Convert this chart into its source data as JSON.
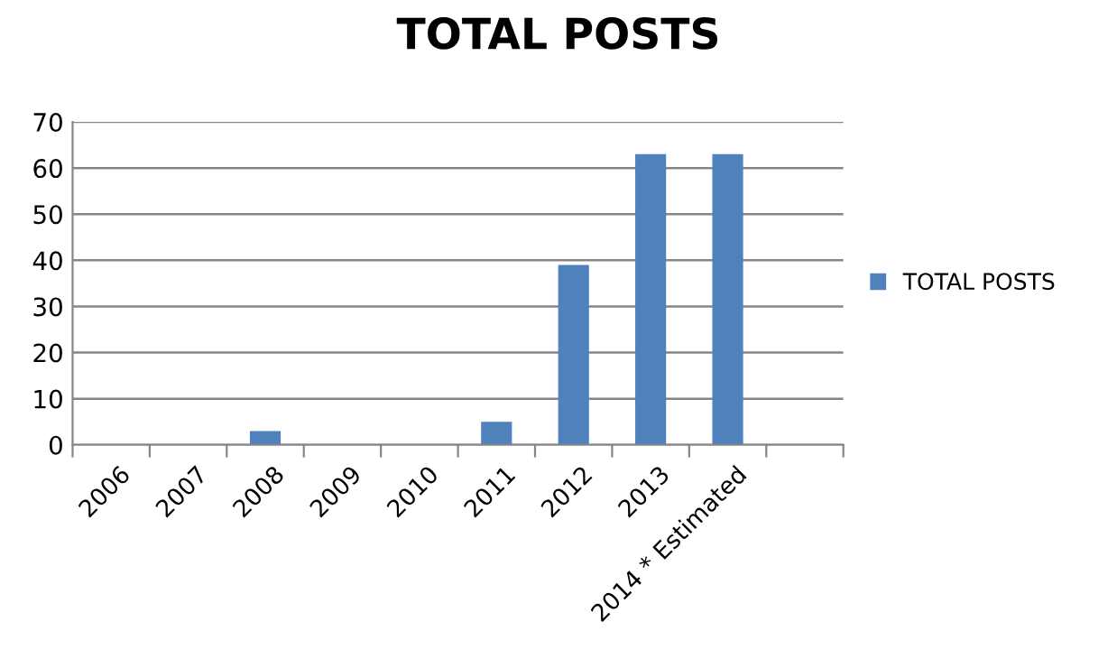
{
  "chart_data": {
    "type": "bar",
    "title": "TOTAL POSTS",
    "categories": [
      "2006",
      "2007",
      "2008",
      "2009",
      "2010",
      "2011",
      "2012",
      "2013",
      "2014 * Estimated",
      null
    ],
    "series": [
      {
        "name": "TOTAL POSTS",
        "color": "#4f81bd",
        "values": [
          0,
          0,
          3,
          0,
          0,
          5,
          39,
          63,
          63,
          null
        ]
      }
    ],
    "ylim": [
      0,
      70
    ],
    "yticks": [
      0,
      10,
      20,
      30,
      40,
      50,
      60,
      70
    ],
    "grid": "y",
    "legend": "right"
  }
}
